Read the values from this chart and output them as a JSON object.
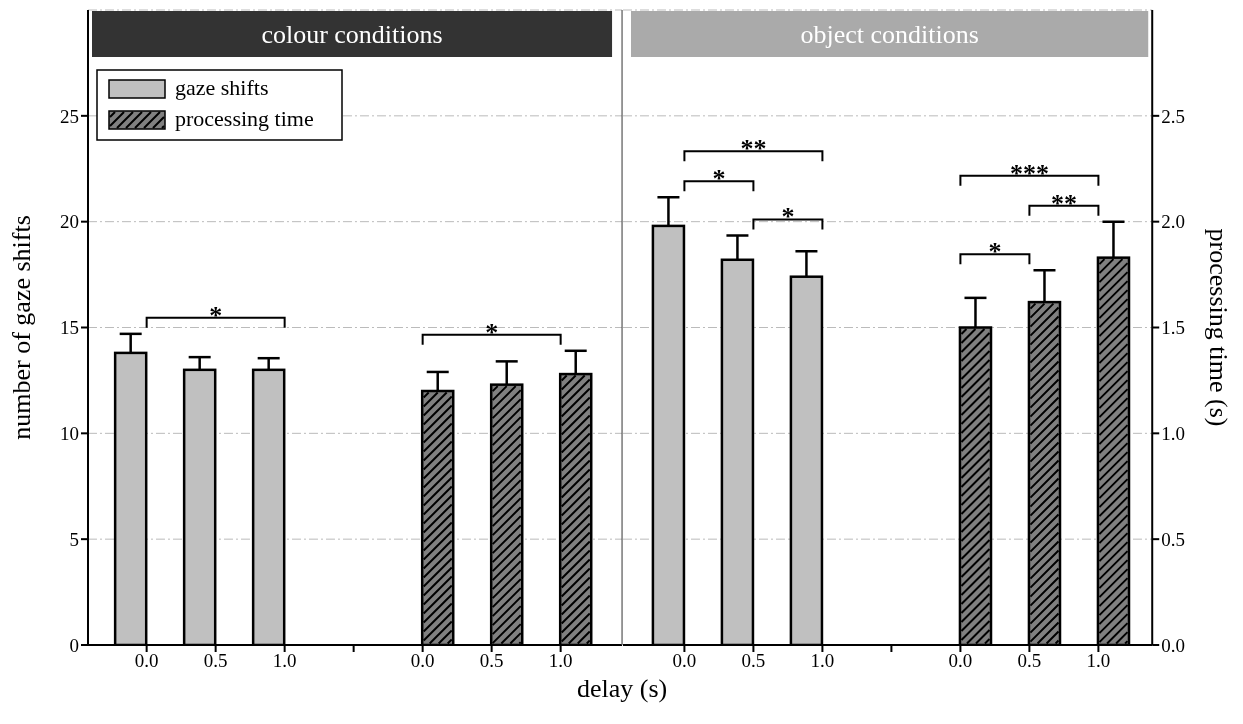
{
  "chart_data": [
    {
      "type": "bar",
      "title": "colour conditions",
      "categories": [
        "0.0",
        "0.5",
        "1.0",
        null,
        "0.0",
        "0.5",
        "1.0"
      ],
      "series": [
        {
          "name": "gaze shifts",
          "color": "#c0c0c0",
          "values": [
            13.8,
            13.0,
            13.0,
            null,
            null,
            null,
            null
          ],
          "errors": [
            0.9,
            0.6,
            0.55,
            null,
            null,
            null,
            null
          ]
        },
        {
          "name": "processing time",
          "color": "#808080",
          "axis": "y2",
          "values": [
            null,
            null,
            null,
            null,
            1.2,
            1.23,
            1.28
          ],
          "errors": [
            null,
            null,
            null,
            null,
            0.09,
            0.11,
            0.11
          ]
        }
      ],
      "xlabel": "delay (s)",
      "ylabel": "number of gaze shifts",
      "ylim": [
        0,
        30
      ],
      "yticks": [
        0,
        5,
        10,
        15,
        20,
        25
      ],
      "y2lim": [
        0,
        3
      ],
      "tick_labels": [
        "x",
        "y"
      ],
      "grid": "y",
      "legend": "top left",
      "annotations": [
        "*",
        "*"
      ]
    },
    {
      "type": "bar",
      "title": "object conditions",
      "categories": [
        "0.0",
        "0.5",
        "1.0",
        null,
        "0.0",
        "0.5",
        "1.0"
      ],
      "series": [
        {
          "color": "#c0c0c0",
          "values": [
            19.8,
            18.2,
            17.4,
            null,
            null,
            null,
            null
          ],
          "errors": [
            1.35,
            1.15,
            1.2,
            null,
            null,
            null,
            null
          ]
        },
        {
          "color": "#808080",
          "axis": "y2",
          "values": [
            null,
            null,
            null,
            null,
            1.5,
            1.62,
            1.83
          ],
          "errors": [
            null,
            null,
            null,
            null,
            0.14,
            0.15,
            0.17
          ]
        }
      ],
      "y2label": "processing time (s)",
      "ylim": [
        0,
        30
      ],
      "y2lim": [
        0,
        3
      ],
      "y2ticks": [
        {
          "value": 0,
          "label": "0.0"
        },
        {
          "value": 0.5,
          "label": "0.5"
        },
        {
          "value": 1,
          "label": "1.0"
        },
        {
          "value": 1.5,
          "label": "1.5"
        },
        {
          "value": 2,
          "label": "2.0"
        },
        {
          "value": 2.5,
          "label": "2.5"
        }
      ],
      "tick_labels": [
        "x",
        "y2"
      ],
      "grid": "y",
      "annotations": [
        "**",
        "*",
        "*",
        "***",
        "**",
        "*"
      ]
    }
  ]
}
